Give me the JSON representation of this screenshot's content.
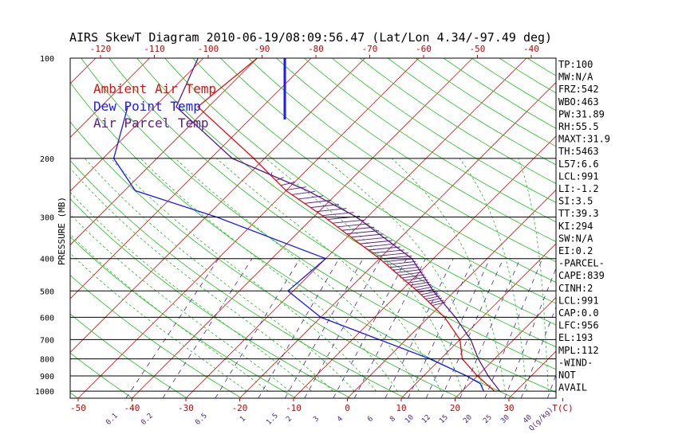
{
  "title": "AIRS SkewT Diagram 2010-06-19/08:09:56.47 (Lat/Lon 4.34/-97.49 deg)",
  "ylabel": "PRESSURE (MB)",
  "colors": {
    "ambient": "#e01010",
    "dewpoint": "#1a1aff",
    "parcel": "#5a1a8c",
    "isotherm": "#e01010",
    "dry_adiabat": "#20c020",
    "moist_adiabat": "#20c020",
    "mixing_ratio": "#4b2a8c",
    "wind_barb": "#1a1aff"
  },
  "legend": [
    {
      "label": "Ambient Air Temp",
      "color": "#e01010"
    },
    {
      "label": "Dew Point Temp",
      "color": "#1a1aff"
    },
    {
      "label": "Air Parcel Temp",
      "color": "#5a1a8c"
    }
  ],
  "stats": [
    "TP:100",
    "MW:N/A",
    "FRZ:542",
    "WBO:463",
    "PW:31.89",
    "RH:55.5",
    "MAXT:31.9",
    "TH:5463",
    "L57:6.6",
    "LCL:991",
    "LI:-1.2",
    "SI:3.5",
    "TT:39.3",
    "KI:294",
    "SW:N/A",
    "EI:0.2",
    "-PARCEL-",
    "CAPE:839",
    "CINH:2",
    "LCL:991",
    "CAP:0.0",
    "LFC:956",
    "EL:193",
    "MPL:112",
    "-WIND-",
    "NOT",
    "AVAIL"
  ],
  "top_temp_ticks": [
    "-120",
    "-110",
    "-100",
    "-90",
    "-80",
    "-70",
    "-60",
    "-50",
    "-40"
  ],
  "bottom_temp_ticks": [
    "-50",
    "-40",
    "-30",
    "-20",
    "-10",
    "0",
    "10",
    "20",
    "30",
    "T(C)"
  ],
  "mixing_ratio_ticks": [
    "0.1",
    "0.2",
    "0.5",
    "1",
    "1.5",
    "2",
    "3",
    "4",
    "6",
    "8",
    "10",
    "12",
    "15",
    "20",
    "25",
    "30",
    "40",
    "Q(g/kg)"
  ],
  "chart_data": {
    "type": "line",
    "title": "AIRS SkewT Diagram 2010-06-19/08:09:56.47 (Lat/Lon 4.34/-97.49 deg)",
    "ylabel": "PRESSURE (MB)",
    "pressure_levels": [
      100,
      200,
      300,
      400,
      500,
      600,
      700,
      800,
      900,
      1000
    ],
    "pressure_tick_labels": [
      "100",
      "200",
      "300",
      "400",
      "500",
      "600",
      "700",
      "800",
      "900",
      "1000"
    ],
    "series": [
      {
        "name": "Ambient Air Temp",
        "points": [
          {
            "p": 100,
            "t": -80
          },
          {
            "p": 140,
            "t": -82
          },
          {
            "p": 200,
            "t": -62
          },
          {
            "p": 250,
            "t": -50
          },
          {
            "p": 300,
            "t": -38
          },
          {
            "p": 400,
            "t": -20
          },
          {
            "p": 500,
            "t": -7
          },
          {
            "p": 600,
            "t": 3
          },
          {
            "p": 700,
            "t": 10
          },
          {
            "p": 800,
            "t": 14
          },
          {
            "p": 900,
            "t": 20
          },
          {
            "p": 1000,
            "t": 26
          }
        ]
      },
      {
        "name": "Dew Point Temp",
        "points": [
          {
            "p": 140,
            "t": -95
          },
          {
            "p": 200,
            "t": -88
          },
          {
            "p": 250,
            "t": -78
          },
          {
            "p": 300,
            "t": -58
          },
          {
            "p": 400,
            "t": -30
          },
          {
            "p": 500,
            "t": -31
          },
          {
            "p": 600,
            "t": -20
          },
          {
            "p": 700,
            "t": -5
          },
          {
            "p": 800,
            "t": 8
          },
          {
            "p": 900,
            "t": 18
          },
          {
            "p": 950,
            "t": 22
          },
          {
            "p": 1000,
            "t": 24
          }
        ]
      },
      {
        "name": "Air Parcel Temp",
        "points": [
          {
            "p": 100,
            "t": -91
          },
          {
            "p": 140,
            "t": -86
          },
          {
            "p": 200,
            "t": -66
          },
          {
            "p": 250,
            "t": -46
          },
          {
            "p": 300,
            "t": -32
          },
          {
            "p": 400,
            "t": -14
          },
          {
            "p": 500,
            "t": -4
          },
          {
            "p": 600,
            "t": 5
          },
          {
            "p": 700,
            "t": 12
          },
          {
            "p": 800,
            "t": 17
          },
          {
            "p": 900,
            "t": 22
          },
          {
            "p": 1000,
            "t": 27
          }
        ]
      }
    ],
    "xlim": [
      -50,
      40
    ],
    "ylim": [
      1050,
      100
    ],
    "skewed": true,
    "log_pressure": true
  }
}
